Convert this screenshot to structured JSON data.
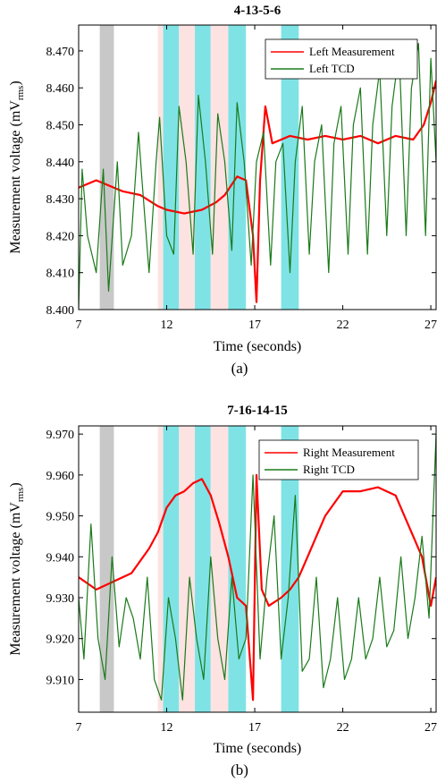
{
  "chart_data": [
    {
      "type": "line",
      "title": "4-13-5-6",
      "caption": "(a)",
      "xlabel": "Time (seconds)",
      "ylabel_main": "Measurement voltage (mV",
      "ylabel_sub": "rms",
      "ylabel_close": ")",
      "xlim": [
        7,
        27.3
      ],
      "ylim": [
        8.4,
        8.477
      ],
      "xticks": [
        7,
        12,
        17,
        22,
        27
      ],
      "xtick_labels": [
        "7",
        "12",
        "17",
        "22",
        "27"
      ],
      "yticks": [
        8.4,
        8.41,
        8.42,
        8.43,
        8.44,
        8.45,
        8.46,
        8.47
      ],
      "ytick_labels": [
        "8.400",
        "8.410",
        "8.420",
        "8.430",
        "8.440",
        "8.450",
        "8.460",
        "8.470"
      ],
      "grid": false,
      "legend": "top-right",
      "bands": [
        {
          "x0": 8.2,
          "x1": 9.0,
          "color": "#c8c8c8"
        },
        {
          "x0": 11.5,
          "x1": 11.8,
          "color": "#fde2e2"
        },
        {
          "x0": 11.8,
          "x1": 12.7,
          "color": "#7fe3e6"
        },
        {
          "x0": 12.7,
          "x1": 13.6,
          "color": "#fde2e2"
        },
        {
          "x0": 13.6,
          "x1": 14.5,
          "color": "#7fe3e6"
        },
        {
          "x0": 14.5,
          "x1": 15.5,
          "color": "#fde2e2"
        },
        {
          "x0": 15.5,
          "x1": 16.5,
          "color": "#7fe3e6"
        },
        {
          "x0": 18.5,
          "x1": 19.5,
          "color": "#7fe3e6"
        }
      ],
      "series": [
        {
          "name": "Left Measurement",
          "color": "#ff0000",
          "x": [
            7.0,
            8.0,
            9.5,
            10.5,
            11.5,
            12.0,
            13.0,
            14.0,
            14.8,
            15.3,
            16.0,
            16.5,
            16.9,
            17.1,
            17.3,
            17.6,
            18.0,
            19.0,
            20.0,
            21.0,
            22.0,
            23.0,
            24.0,
            25.0,
            26.0,
            26.6,
            27.0,
            27.3
          ],
          "y": [
            8.433,
            8.435,
            8.432,
            8.431,
            8.428,
            8.427,
            8.426,
            8.427,
            8.429,
            8.431,
            8.436,
            8.435,
            8.42,
            8.402,
            8.435,
            8.455,
            8.445,
            8.447,
            8.446,
            8.447,
            8.446,
            8.447,
            8.445,
            8.447,
            8.446,
            8.45,
            8.456,
            8.462
          ]
        },
        {
          "name": "Left TCD",
          "color": "#1a7a1a",
          "x": [
            7.0,
            7.2,
            7.5,
            8.0,
            8.4,
            8.7,
            9.2,
            9.5,
            10.0,
            10.4,
            10.6,
            11.0,
            11.4,
            11.6,
            12.0,
            12.4,
            12.7,
            13.1,
            13.5,
            13.8,
            14.2,
            14.6,
            14.9,
            15.3,
            15.7,
            16.0,
            16.4,
            16.8,
            17.1,
            17.5,
            17.9,
            18.2,
            18.6,
            19.0,
            19.3,
            19.7,
            20.1,
            20.4,
            20.8,
            21.2,
            21.5,
            21.9,
            22.3,
            22.6,
            23.0,
            23.4,
            23.7,
            24.1,
            24.5,
            24.8,
            25.2,
            25.6,
            25.9,
            26.3,
            26.7,
            27.0,
            27.3
          ],
          "y": [
            8.4,
            8.438,
            8.42,
            8.41,
            8.438,
            8.405,
            8.44,
            8.412,
            8.42,
            8.448,
            8.435,
            8.41,
            8.44,
            8.452,
            8.42,
            8.415,
            8.455,
            8.44,
            8.415,
            8.458,
            8.44,
            8.415,
            8.453,
            8.44,
            8.416,
            8.456,
            8.44,
            8.412,
            8.44,
            8.448,
            8.412,
            8.44,
            8.445,
            8.41,
            8.44,
            8.455,
            8.415,
            8.44,
            8.45,
            8.41,
            8.445,
            8.455,
            8.415,
            8.45,
            8.46,
            8.415,
            8.45,
            8.465,
            8.42,
            8.455,
            8.47,
            8.42,
            8.46,
            8.472,
            8.42,
            8.468,
            8.44
          ]
        }
      ]
    },
    {
      "type": "line",
      "title": "7-16-14-15",
      "caption": "(b)",
      "xlabel": "Time (seconds)",
      "ylabel_main": "Measurement voltage (mV",
      "ylabel_sub": "rms",
      "ylabel_close": ")",
      "xlim": [
        7,
        27.3
      ],
      "ylim": [
        9.902,
        9.972
      ],
      "xticks": [
        7,
        12,
        17,
        22,
        27
      ],
      "xtick_labels": [
        "7",
        "12",
        "17",
        "22",
        "27"
      ],
      "yticks": [
        9.91,
        9.92,
        9.93,
        9.94,
        9.95,
        9.96,
        9.97
      ],
      "ytick_labels": [
        "9.910",
        "9.920",
        "9.930",
        "9.940",
        "9.950",
        "9.960",
        "9.970"
      ],
      "grid": false,
      "legend": "top-right",
      "bands": [
        {
          "x0": 8.2,
          "x1": 9.0,
          "color": "#c8c8c8"
        },
        {
          "x0": 11.5,
          "x1": 11.8,
          "color": "#fde2e2"
        },
        {
          "x0": 11.8,
          "x1": 12.7,
          "color": "#7fe3e6"
        },
        {
          "x0": 12.7,
          "x1": 13.6,
          "color": "#fde2e2"
        },
        {
          "x0": 13.6,
          "x1": 14.5,
          "color": "#7fe3e6"
        },
        {
          "x0": 14.5,
          "x1": 15.5,
          "color": "#fde2e2"
        },
        {
          "x0": 15.5,
          "x1": 16.5,
          "color": "#7fe3e6"
        },
        {
          "x0": 18.5,
          "x1": 19.5,
          "color": "#7fe3e6"
        }
      ],
      "series": [
        {
          "name": "Right Measurement",
          "color": "#ff0000",
          "x": [
            7.0,
            8.0,
            9.0,
            10.0,
            11.0,
            11.5,
            12.0,
            12.5,
            13.0,
            13.5,
            14.0,
            14.5,
            15.0,
            15.5,
            16.0,
            16.5,
            16.9,
            17.1,
            17.4,
            17.8,
            18.5,
            19.0,
            19.5,
            20.0,
            20.5,
            21.0,
            21.5,
            22.0,
            23.0,
            24.0,
            25.0,
            25.5,
            26.0,
            26.5,
            27.0,
            27.3
          ],
          "y": [
            9.935,
            9.932,
            9.934,
            9.936,
            9.942,
            9.946,
            9.952,
            9.955,
            9.956,
            9.958,
            9.959,
            9.955,
            9.948,
            9.94,
            9.93,
            9.928,
            9.905,
            9.96,
            9.932,
            9.928,
            9.93,
            9.932,
            9.935,
            9.94,
            9.945,
            9.95,
            9.953,
            9.956,
            9.956,
            9.957,
            9.955,
            9.95,
            9.945,
            9.94,
            9.928,
            9.935
          ]
        },
        {
          "name": "Right TCD",
          "color": "#1a7a1a",
          "x": [
            7.0,
            7.3,
            7.7,
            8.1,
            8.5,
            8.9,
            9.3,
            9.7,
            10.1,
            10.5,
            10.9,
            11.3,
            11.7,
            12.1,
            12.5,
            12.9,
            13.3,
            13.7,
            14.1,
            14.5,
            14.9,
            15.3,
            15.7,
            16.1,
            16.5,
            16.9,
            17.3,
            17.7,
            18.1,
            18.5,
            18.9,
            19.3,
            19.7,
            20.1,
            20.5,
            20.9,
            21.3,
            21.7,
            22.1,
            22.5,
            22.9,
            23.3,
            23.7,
            24.1,
            24.5,
            24.9,
            25.3,
            25.7,
            26.1,
            26.5,
            26.9,
            27.3
          ],
          "y": [
            9.93,
            9.915,
            9.948,
            9.92,
            9.91,
            9.94,
            9.918,
            9.93,
            9.925,
            9.915,
            9.935,
            9.91,
            9.905,
            9.93,
            9.92,
            9.905,
            9.935,
            9.92,
            9.91,
            9.94,
            9.92,
            9.91,
            9.935,
            9.915,
            9.92,
            9.96,
            9.915,
            9.935,
            9.95,
            9.915,
            9.93,
            9.955,
            9.912,
            9.915,
            9.935,
            9.908,
            9.915,
            9.93,
            9.91,
            9.915,
            9.93,
            9.915,
            9.92,
            9.935,
            9.918,
            9.922,
            9.94,
            9.92,
            9.93,
            9.945,
            9.925,
            9.97
          ]
        }
      ]
    }
  ]
}
